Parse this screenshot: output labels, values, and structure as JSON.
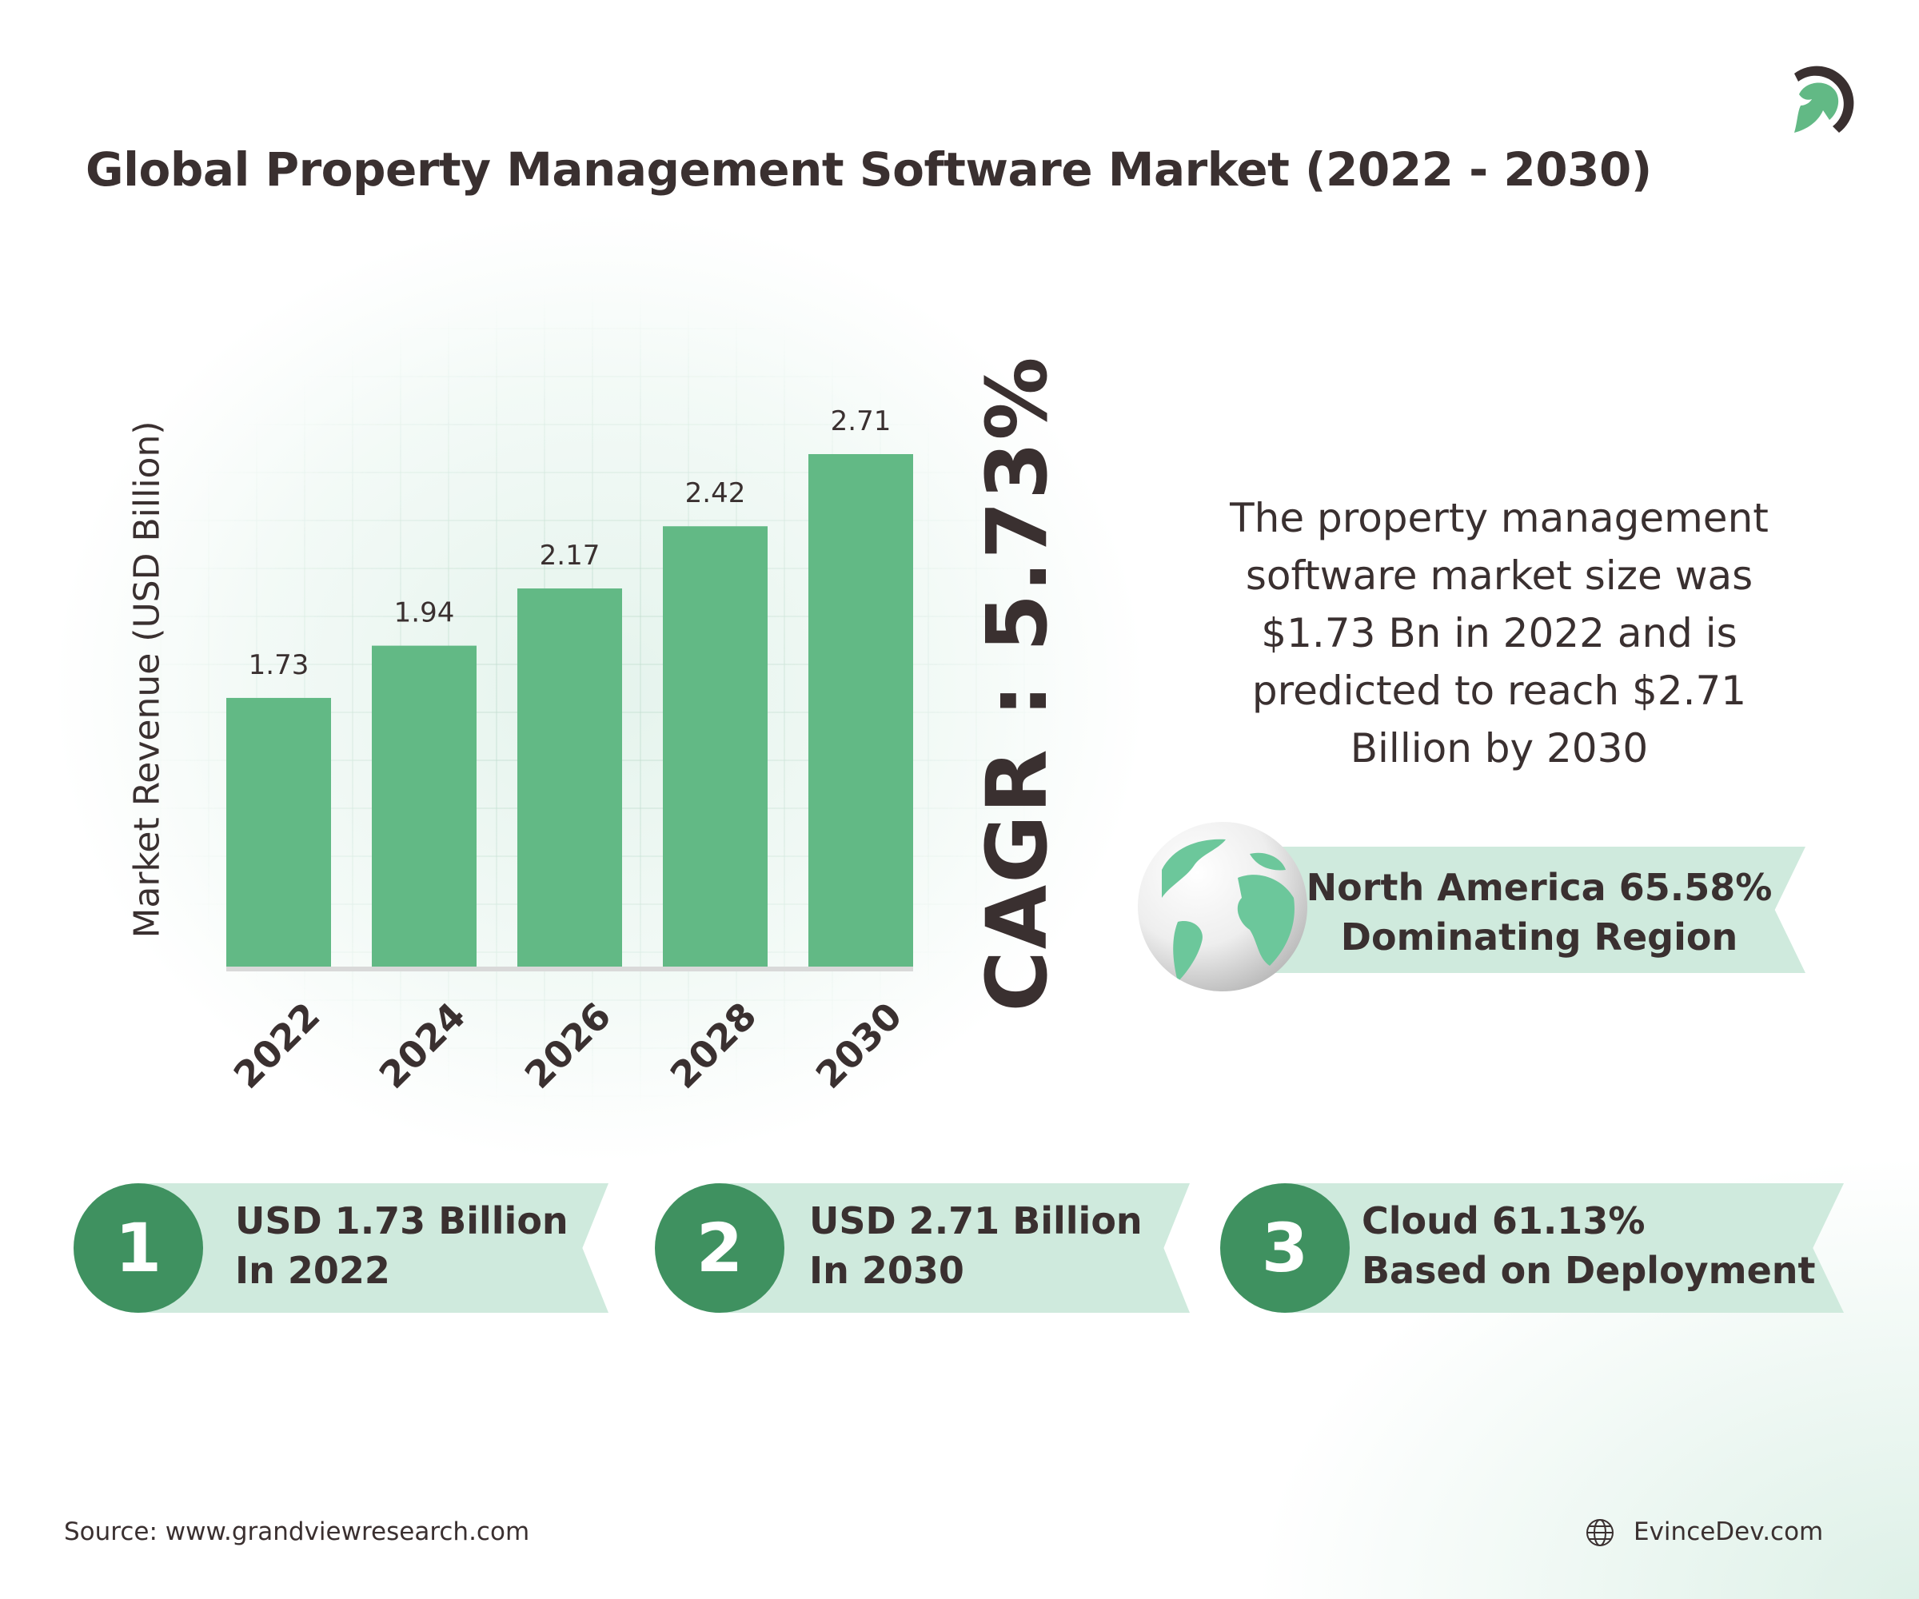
{
  "title": "Global Property Management Software Market (2022 - 2030)",
  "logo": "evincedev-spartan-helmet-logo",
  "colors": {
    "bar": "#62b985",
    "ribbon": "#cfeadd",
    "badge": "#3f9160",
    "text": "#3a3030"
  },
  "chart_data": {
    "type": "bar",
    "categories": [
      "2022",
      "2024",
      "2026",
      "2028",
      "2030"
    ],
    "values": [
      1.73,
      1.94,
      2.17,
      2.42,
      2.71
    ],
    "data_labels": [
      "1.73",
      "1.94",
      "2.17",
      "2.42",
      "2.71"
    ],
    "title": "",
    "xlabel": "",
    "ylabel": "Market Revenue (USD Billion)",
    "ylim": [
      0.65,
      2.8
    ],
    "grid": false,
    "legend": "none"
  },
  "cagr": "CAGR : 5.73%",
  "summary": [
    "The property management",
    "software market size was",
    "$1.73 Bn in 2022 and is",
    "predicted to reach $2.71",
    "Billion by 2030"
  ],
  "region": {
    "line1": "North America 65.58%",
    "line2": "Dominating Region",
    "icon": "globe-icon"
  },
  "highlights": [
    {
      "number": "1",
      "line1": "USD 1.73 Billion",
      "line2": "In 2022"
    },
    {
      "number": "2",
      "line1": "USD 2.71 Billion",
      "line2": "In 2030"
    },
    {
      "number": "3",
      "line1": "Cloud 61.13%",
      "line2": "Based on Deployment"
    }
  ],
  "footer": {
    "source": "Source: www.grandviewresearch.com",
    "website": "EvinceDev.com"
  }
}
